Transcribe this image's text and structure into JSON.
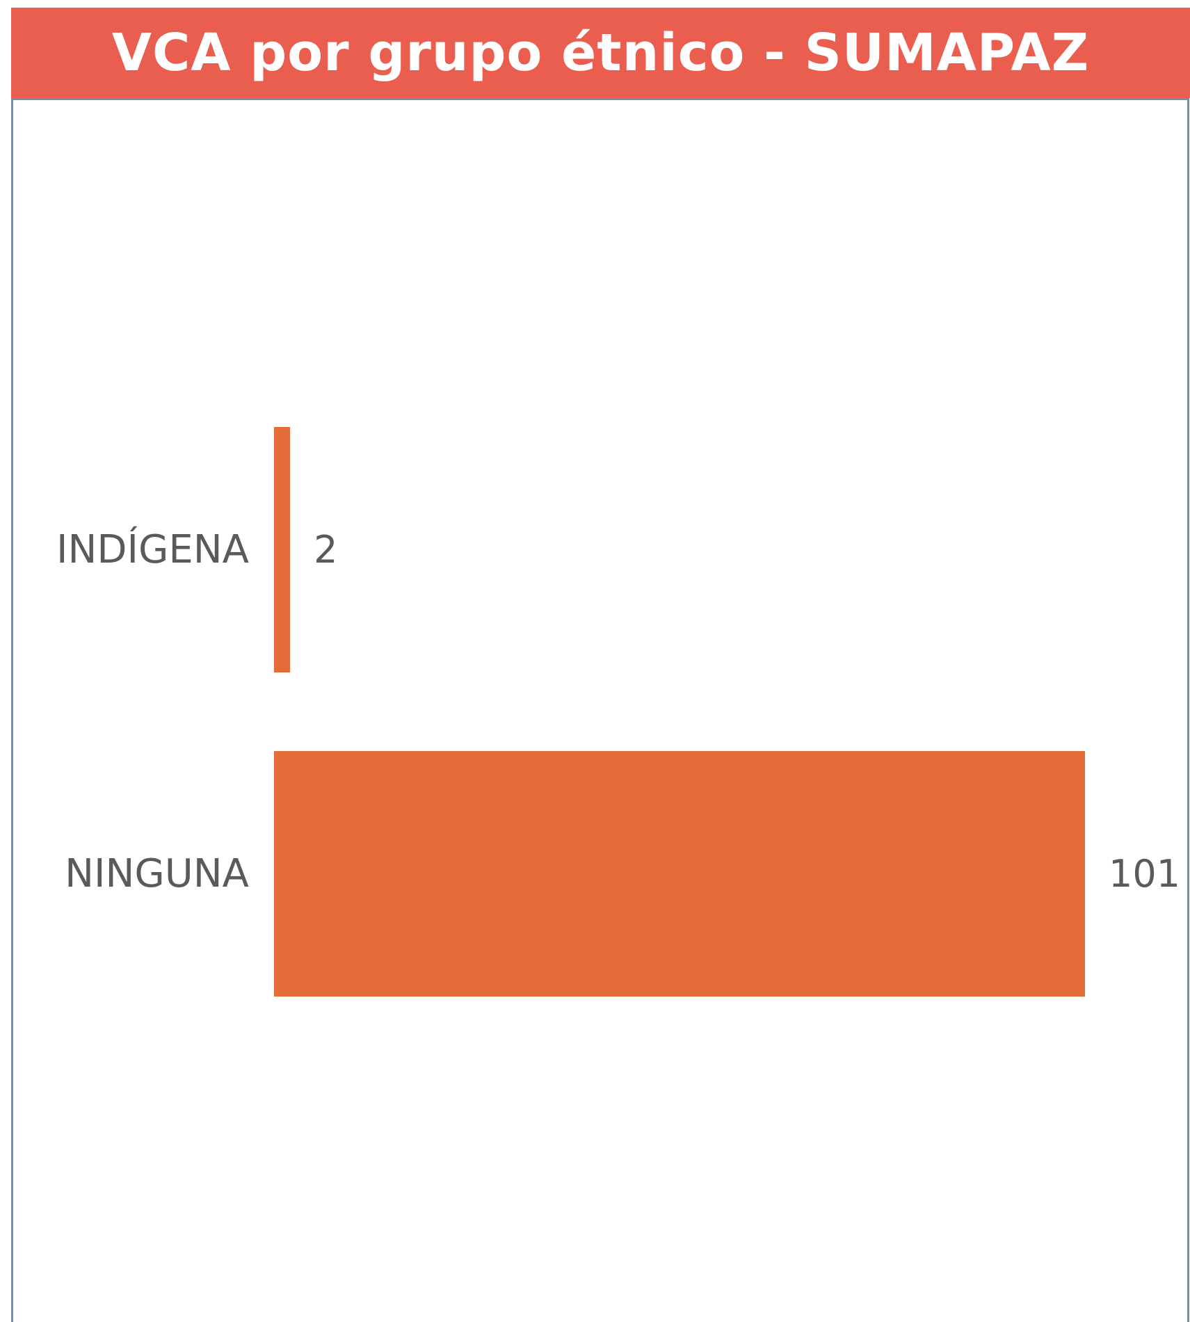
{
  "header": {
    "title": "VCA por grupo étnico - SUMAPAZ"
  },
  "colors": {
    "header_bg": "#e95e4f",
    "bar": "#e46c39",
    "text": "#5a5a5a",
    "panel_border": "#7b8aa6"
  },
  "chart_data": {
    "type": "bar",
    "orientation": "horizontal",
    "title": "VCA por grupo étnico - SUMAPAZ",
    "categories": [
      "INDÍGENA",
      "NINGUNA"
    ],
    "values": [
      2,
      101
    ],
    "data_labels": [
      "2",
      "101"
    ],
    "xlim": [
      0,
      101
    ],
    "grid": false,
    "legend": "none"
  }
}
